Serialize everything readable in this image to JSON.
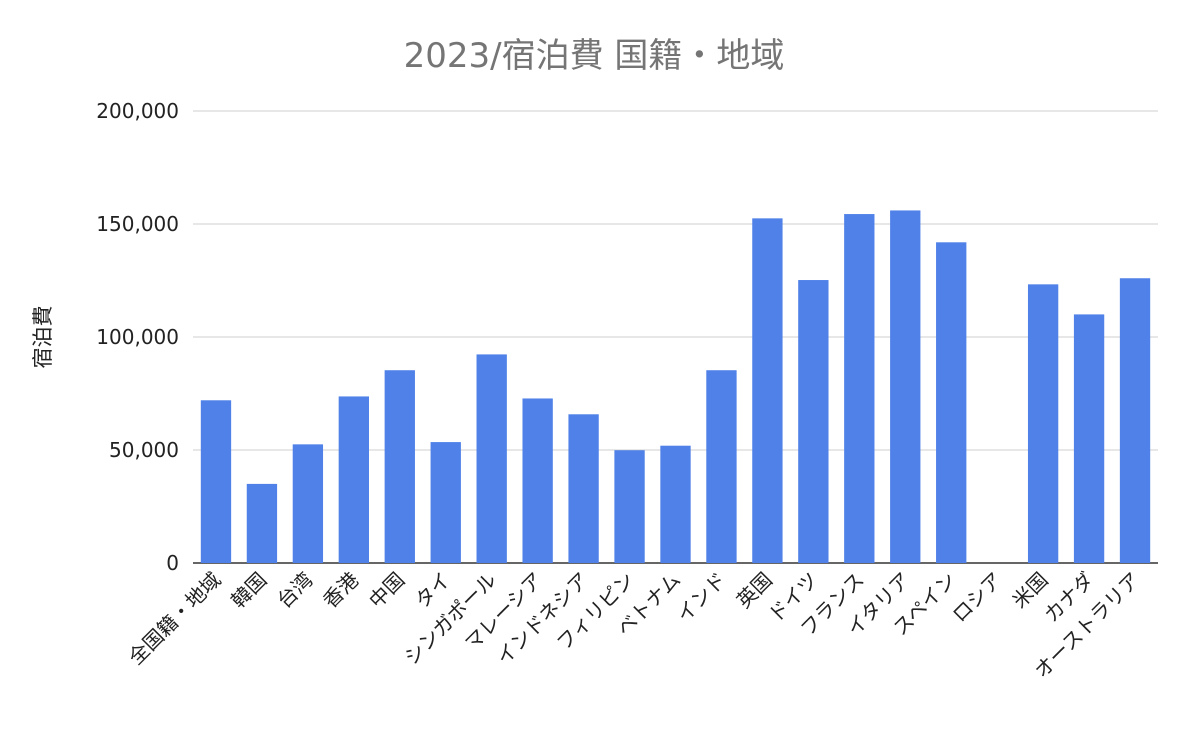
{
  "chart_data": {
    "type": "bar",
    "title": "2023/宿泊費 国籍・地域",
    "ylabel": "宿泊費",
    "xlabel": "",
    "ylim": [
      0,
      200000
    ],
    "yticks": [
      0,
      50000,
      100000,
      150000,
      200000
    ],
    "ytick_labels": [
      "0",
      "50,000",
      "100,000",
      "150,000",
      "200,000"
    ],
    "grid": true,
    "legend": "none",
    "bar_color": "#4f81e8",
    "categories": [
      "全国籍・地域",
      "韓国",
      "台湾",
      "香港",
      "中国",
      "タイ",
      "シンガポール",
      "マレーシア",
      "インドネシア",
      "フィリピン",
      "ベトナム",
      "インド",
      "英国",
      "ドイツ",
      "フランス",
      "イタリア",
      "スペイン",
      "ロシア",
      "米国",
      "カナダ",
      "オーストラリア"
    ],
    "values": [
      72000,
      35000,
      52500,
      73700,
      85300,
      53500,
      92300,
      72800,
      65800,
      49900,
      51900,
      85300,
      152500,
      125200,
      154400,
      156000,
      141900,
      0,
      123300,
      110000,
      126000
    ]
  }
}
